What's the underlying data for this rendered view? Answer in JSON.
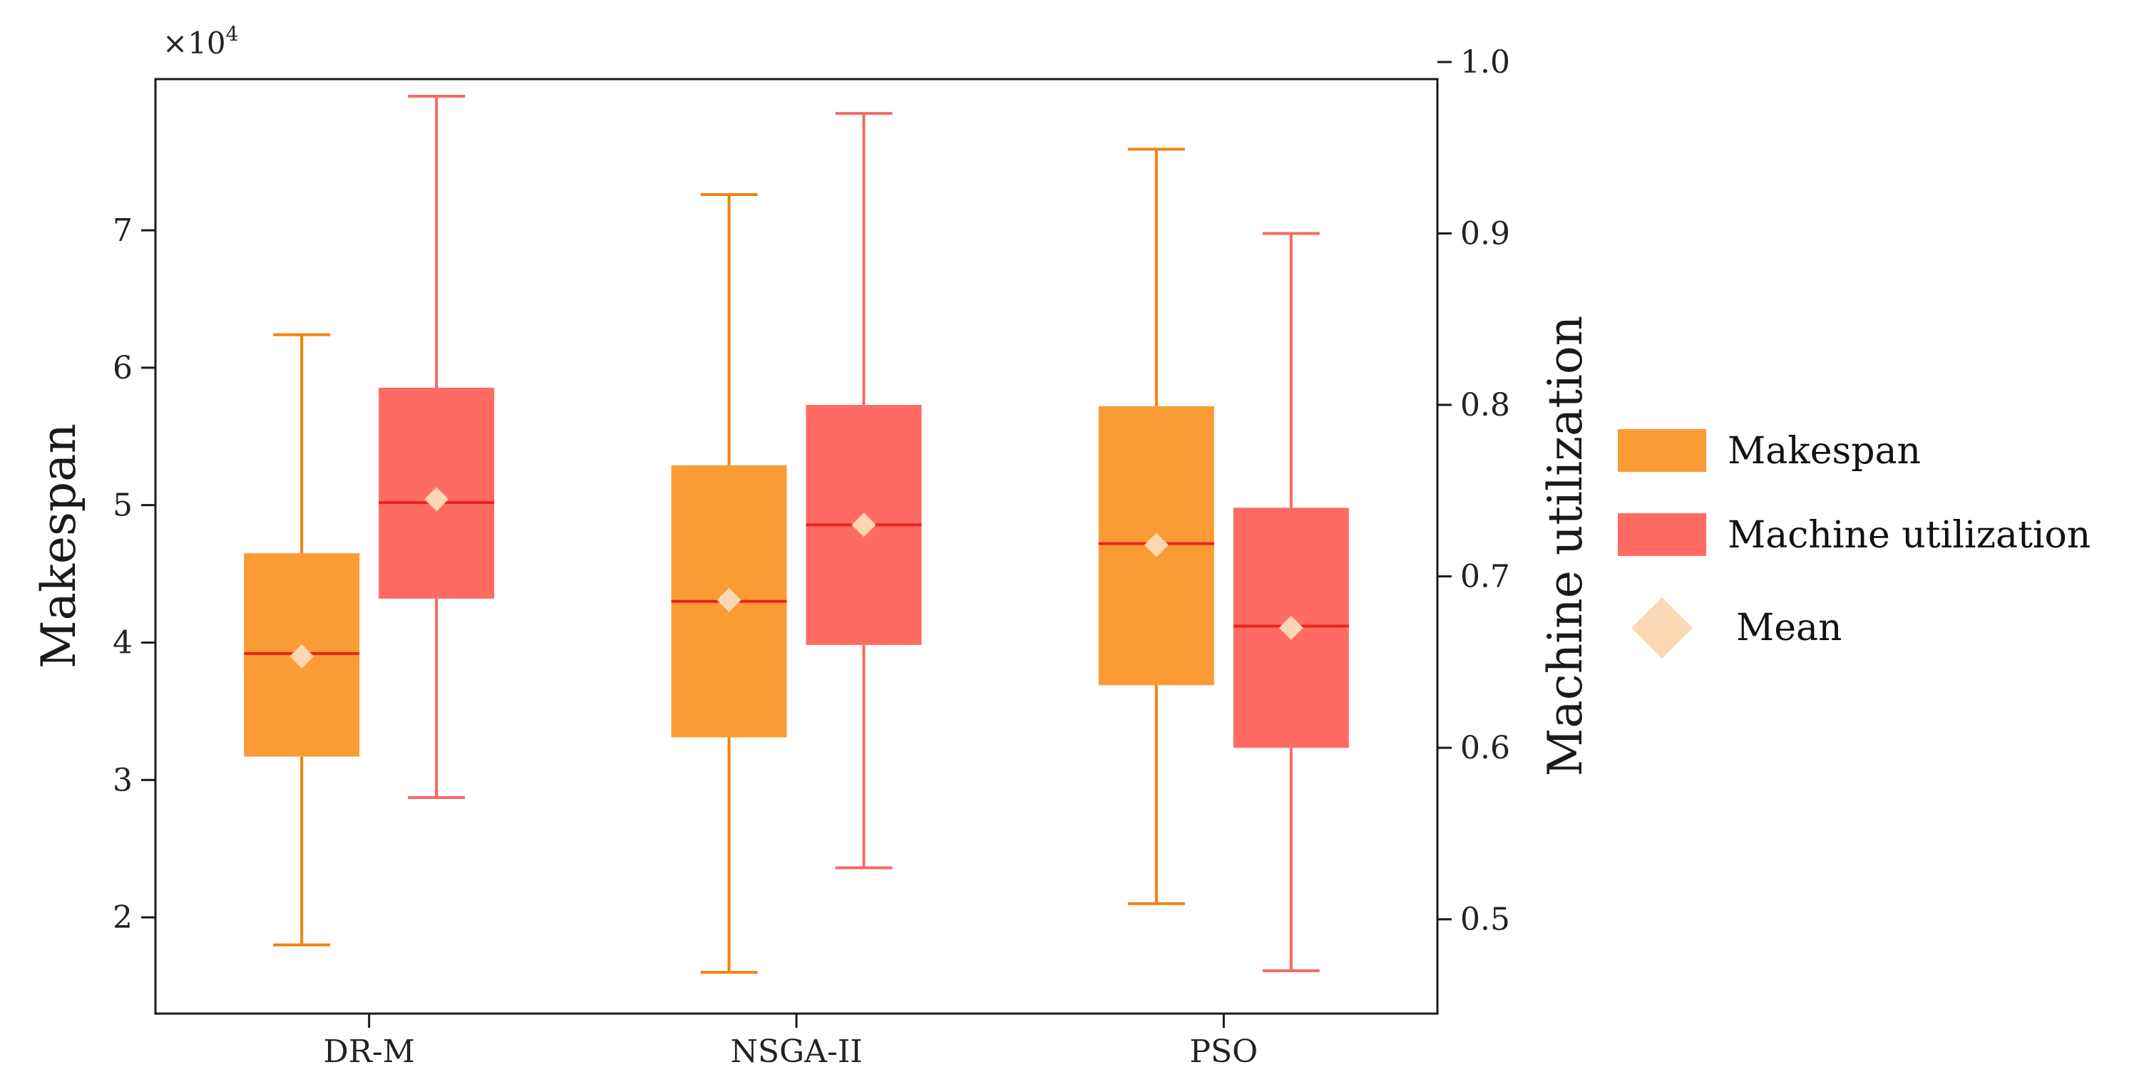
{
  "chart_data": {
    "type": "boxplot",
    "title": "",
    "categories": [
      "DR-M",
      "NSGA-II",
      "PSO"
    ],
    "left_axis": {
      "label": "Makespan",
      "multiplier_label": "×10",
      "multiplier_exponent": "4",
      "ylim": [
        1.3,
        8.1
      ],
      "ticks": [
        2,
        3,
        4,
        5,
        6,
        7
      ],
      "tick_labels": [
        "2",
        "3",
        "4",
        "5",
        "6",
        "7"
      ]
    },
    "right_axis": {
      "label": "Machine utilization",
      "ylim": [
        0.445,
        0.99
      ],
      "ticks": [
        0.5,
        0.6,
        0.7,
        0.8,
        0.9,
        1.0
      ],
      "tick_labels": [
        "0.5",
        "0.6",
        "0.7",
        "0.8",
        "0.9",
        "1.0"
      ]
    },
    "series": [
      {
        "name": "Makespan",
        "axis": "left",
        "color": "#fa9b35",
        "whisker_color": "#f5820a",
        "median_color": "#e8231e",
        "boxes": [
          {
            "category": "DR-M",
            "min": 1.8,
            "q1": 3.17,
            "median": 3.92,
            "q3": 4.65,
            "max": 6.24,
            "mean": 3.9
          },
          {
            "category": "NSGA-II",
            "min": 1.6,
            "q1": 3.31,
            "median": 4.3,
            "q3": 5.29,
            "max": 7.26,
            "mean": 4.31
          },
          {
            "category": "PSO",
            "min": 2.1,
            "q1": 3.69,
            "median": 4.72,
            "q3": 5.72,
            "max": 7.59,
            "mean": 4.71
          }
        ]
      },
      {
        "name": "Machine utilization",
        "axis": "right",
        "color": "#ff6b62",
        "whisker_color": "#f56a64",
        "median_color": "#e8231e",
        "boxes": [
          {
            "category": "DR-M",
            "min": 0.571,
            "q1": 0.687,
            "median": 0.743,
            "q3": 0.81,
            "max": 0.98,
            "mean": 0.745
          },
          {
            "category": "NSGA-II",
            "min": 0.53,
            "q1": 0.66,
            "median": 0.73,
            "q3": 0.8,
            "max": 0.97,
            "mean": 0.73
          },
          {
            "category": "PSO",
            "min": 0.47,
            "q1": 0.6,
            "median": 0.671,
            "q3": 0.74,
            "max": 0.9,
            "mean": 0.67
          }
        ]
      }
    ],
    "legend": {
      "position": "right",
      "items": [
        {
          "label": "Makespan",
          "color": "#fa9b35",
          "marker": "square"
        },
        {
          "label": "Machine utilization",
          "color": "#ff6b62",
          "marker": "square"
        },
        {
          "label": "Mean",
          "color": "#fcd7b4",
          "marker": "diamond"
        }
      ]
    },
    "mean_marker_color": "#fcd7b4"
  }
}
